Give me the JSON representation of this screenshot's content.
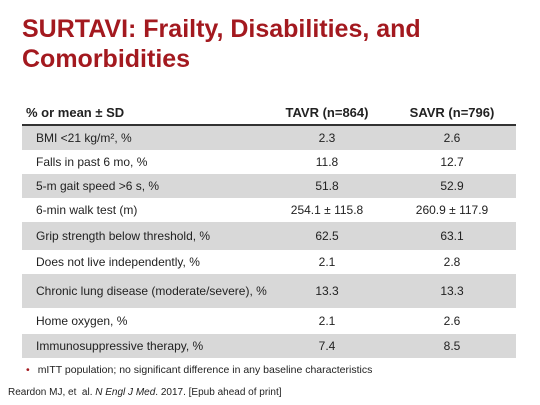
{
  "title": "SURTAVI: Frailty, Disabilities, and Comorbidities",
  "table": {
    "header": [
      "% or mean ± SD",
      "TAVR (n=864)",
      "SAVR (n=796)"
    ],
    "rows": [
      [
        "BMI <21 kg/m², %",
        "2.3",
        "2.6"
      ],
      [
        "Falls in past 6 mo, %",
        "11.8",
        "12.7"
      ],
      [
        "5-m gait speed >6 s, %",
        "51.8",
        "52.9"
      ],
      [
        "6-min walk test (m)",
        "254.1 ± 115.8",
        "260.9 ± 117.9"
      ],
      [
        "Grip strength below threshold, %",
        "62.5",
        "63.1"
      ],
      [
        "Does not live independently, %",
        "2.1",
        "2.8"
      ],
      [
        "Chronic lung disease (moderate/severe), %",
        "13.3",
        "13.3"
      ],
      [
        "Home oxygen, %",
        "2.1",
        "2.6"
      ],
      [
        "Immunosuppressive therapy, %",
        "7.4",
        "8.5"
      ]
    ]
  },
  "note": "mITT population; no significant difference in any baseline characteristics",
  "reference": {
    "before": "Reardon MJ, et  al. ",
    "journal": "N Engl J Med",
    "after": ". 2017. [Epub ahead of print]"
  }
}
